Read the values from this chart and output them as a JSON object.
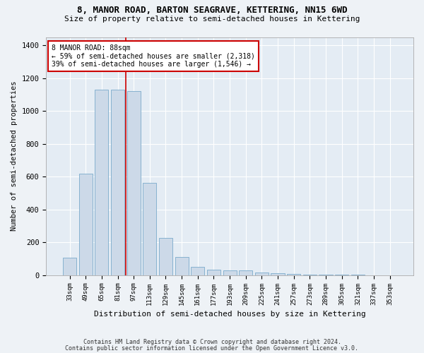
{
  "title": "8, MANOR ROAD, BARTON SEAGRAVE, KETTERING, NN15 6WD",
  "subtitle": "Size of property relative to semi-detached houses in Kettering",
  "xlabel": "Distribution of semi-detached houses by size in Kettering",
  "ylabel": "Number of semi-detached properties",
  "categories": [
    "33sqm",
    "49sqm",
    "65sqm",
    "81sqm",
    "97sqm",
    "113sqm",
    "129sqm",
    "145sqm",
    "161sqm",
    "177sqm",
    "193sqm",
    "209sqm",
    "225sqm",
    "241sqm",
    "257sqm",
    "273sqm",
    "289sqm",
    "305sqm",
    "321sqm",
    "337sqm",
    "353sqm"
  ],
  "values": [
    105,
    620,
    1130,
    1130,
    1120,
    560,
    225,
    110,
    52,
    32,
    30,
    28,
    17,
    12,
    8,
    5,
    3,
    2,
    1,
    0,
    0
  ],
  "bar_color": "#ccd9e8",
  "bar_edge_color": "#7aaacb",
  "annotation_line1": "8 MANOR ROAD: 88sqm",
  "annotation_line2": "← 59% of semi-detached houses are smaller (2,318)",
  "annotation_line3": "39% of semi-detached houses are larger (1,546) →",
  "annotation_box_color": "#ffffff",
  "annotation_box_edge": "#cc0000",
  "vline_color": "#cc0000",
  "vline_x": 3.5,
  "ylim": [
    0,
    1450
  ],
  "yticks": [
    0,
    200,
    400,
    600,
    800,
    1000,
    1200,
    1400
  ],
  "footer1": "Contains HM Land Registry data © Crown copyright and database right 2024.",
  "footer2": "Contains public sector information licensed under the Open Government Licence v3.0.",
  "background_color": "#eef2f6",
  "plot_bg_color": "#e4ecf4",
  "grid_color": "#ffffff"
}
